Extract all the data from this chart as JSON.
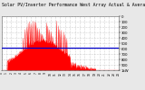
{
  "title_line1": "Solar PV/Inverter Performance West Array Actual & Average Power Output",
  "title_line2": "Actual & Average Power Output",
  "title_fontsize": 3.5,
  "bg_color": "#e8e8e8",
  "plot_bg_color": "#ffffff",
  "grid_color": "#aaaaaa",
  "area_color": "#ff0000",
  "avg_line_color": "#0000cc",
  "avg_line_value": 0.42,
  "ylim": [
    0,
    1.0
  ],
  "xlim": [
    0,
    1
  ],
  "n_points": 300,
  "x_tick_count": 24,
  "y_tick_values": [
    0.0,
    0.1,
    0.2,
    0.3,
    0.4,
    0.5,
    0.6,
    0.7,
    0.8,
    0.9,
    1.0
  ],
  "right_y_labels": [
    "1kW",
    "900",
    "800",
    "700",
    "600",
    "500",
    "400",
    "300",
    "200",
    "100",
    "0"
  ],
  "figsize": [
    1.6,
    1.0
  ],
  "dpi": 100
}
